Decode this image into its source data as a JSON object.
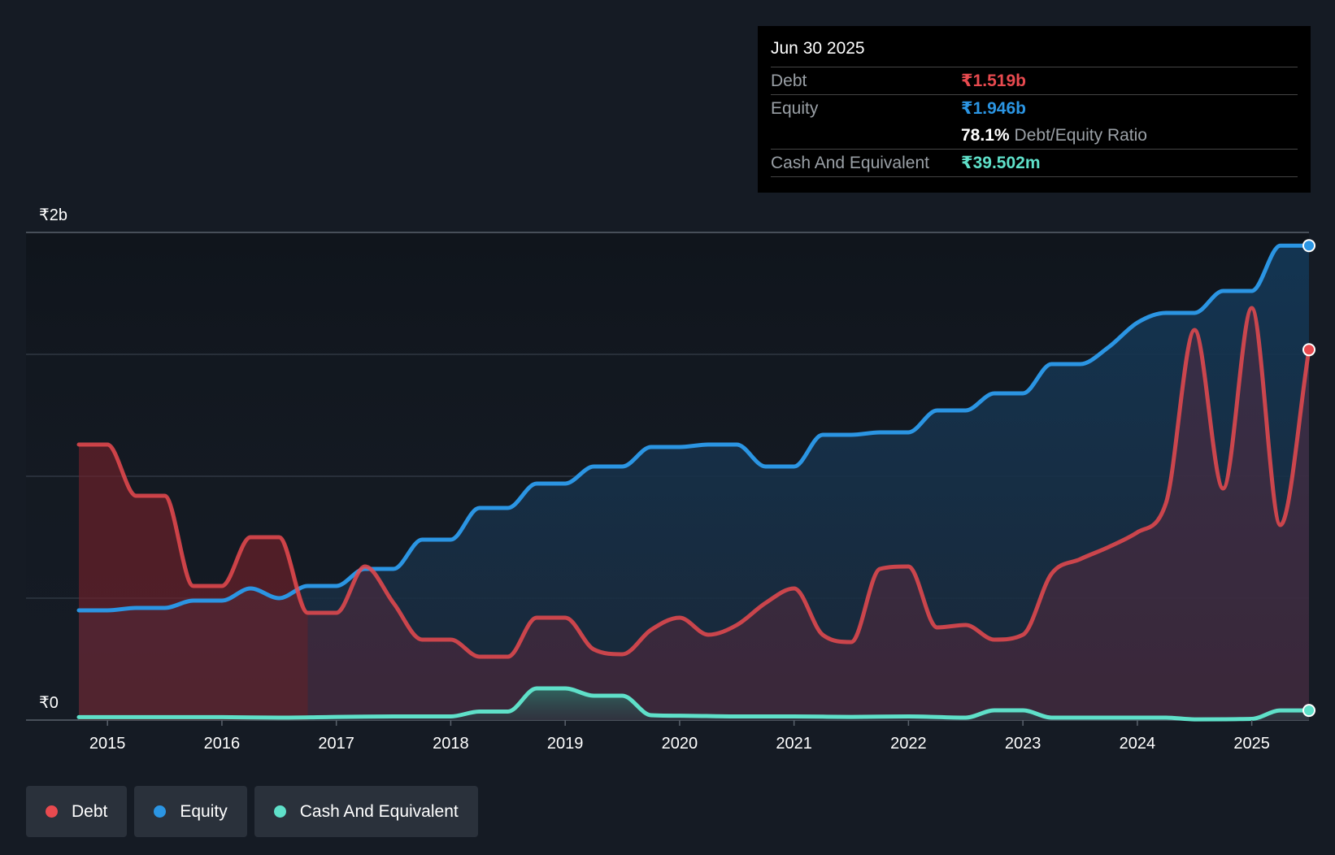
{
  "tooltip": {
    "date": "Jun 30 2025",
    "debt_label": "Debt",
    "debt_value": "₹1.519b",
    "equity_label": "Equity",
    "equity_value": "₹1.946b",
    "ratio_value": "78.1%",
    "ratio_label": "Debt/Equity Ratio",
    "cash_label": "Cash And Equivalent",
    "cash_value": "₹39.502m"
  },
  "legend": {
    "debt": "Debt",
    "equity": "Equity",
    "cash": "Cash And Equivalent"
  },
  "colors": {
    "debt": "#e84a4f",
    "equity": "#2b95e3",
    "cash": "#5fe0c9",
    "background": "#151b24"
  },
  "chart_data": {
    "type": "area",
    "title": "",
    "xlabel": "",
    "ylabel": "",
    "ylim": [
      0,
      2.0
    ],
    "y_unit": "₹ billions",
    "y_tick_labels": [
      {
        "value": 2.0,
        "label": "₹2b"
      },
      {
        "value": 0,
        "label": "₹0"
      }
    ],
    "gridlines": [
      0,
      0.5,
      1.0,
      1.5,
      2.0
    ],
    "xlim": [
      2014.75,
      2025.5
    ],
    "x_ticks": [
      2015,
      2016,
      2017,
      2018,
      2019,
      2020,
      2021,
      2022,
      2023,
      2024,
      2025
    ],
    "x_tick_labels": [
      "2015",
      "2016",
      "2017",
      "2018",
      "2019",
      "2020",
      "2021",
      "2022",
      "2023",
      "2024",
      "2025"
    ],
    "series": [
      {
        "name": "Debt",
        "key": "debt",
        "x": [
          2014.75,
          2015.0,
          2015.25,
          2015.5,
          2015.75,
          2016.0,
          2016.25,
          2016.5,
          2016.75,
          2017.0,
          2017.25,
          2017.5,
          2017.75,
          2018.0,
          2018.25,
          2018.5,
          2018.75,
          2019.0,
          2019.25,
          2019.5,
          2019.75,
          2020.0,
          2020.25,
          2020.5,
          2020.75,
          2021.0,
          2021.25,
          2021.5,
          2021.75,
          2022.0,
          2022.25,
          2022.5,
          2022.75,
          2023.0,
          2023.25,
          2023.5,
          2023.75,
          2024.0,
          2024.25,
          2024.5,
          2024.75,
          2025.0,
          2025.25,
          2025.5
        ],
        "values": [
          1.13,
          1.13,
          0.92,
          0.92,
          0.55,
          0.55,
          0.75,
          0.75,
          0.44,
          0.44,
          0.63,
          0.48,
          0.33,
          0.33,
          0.26,
          0.26,
          0.42,
          0.42,
          0.29,
          0.27,
          0.37,
          0.42,
          0.35,
          0.39,
          0.48,
          0.54,
          0.35,
          0.32,
          0.62,
          0.63,
          0.38,
          0.39,
          0.33,
          0.35,
          0.6,
          0.66,
          0.71,
          0.77,
          0.89,
          1.6,
          0.95,
          1.69,
          0.8,
          1.519
        ]
      },
      {
        "name": "Equity",
        "key": "equity",
        "x": [
          2014.75,
          2015.0,
          2015.25,
          2015.5,
          2015.75,
          2016.0,
          2016.25,
          2016.5,
          2016.75,
          2017.0,
          2017.25,
          2017.5,
          2017.75,
          2018.0,
          2018.25,
          2018.5,
          2018.75,
          2019.0,
          2019.25,
          2019.5,
          2019.75,
          2020.0,
          2020.25,
          2020.5,
          2020.75,
          2021.0,
          2021.25,
          2021.5,
          2021.75,
          2022.0,
          2022.25,
          2022.5,
          2022.75,
          2023.0,
          2023.25,
          2023.5,
          2023.75,
          2024.0,
          2024.25,
          2024.5,
          2024.75,
          2025.0,
          2025.25,
          2025.5
        ],
        "values": [
          0.45,
          0.45,
          0.46,
          0.46,
          0.49,
          0.49,
          0.54,
          0.5,
          0.55,
          0.55,
          0.62,
          0.62,
          0.74,
          0.74,
          0.87,
          0.87,
          0.97,
          0.97,
          1.04,
          1.04,
          1.12,
          1.12,
          1.13,
          1.13,
          1.04,
          1.04,
          1.17,
          1.17,
          1.18,
          1.18,
          1.27,
          1.27,
          1.34,
          1.34,
          1.46,
          1.46,
          1.53,
          1.63,
          1.67,
          1.67,
          1.76,
          1.76,
          1.946,
          1.946
        ]
      },
      {
        "name": "Cash And Equivalent",
        "key": "cash",
        "x": [
          2014.75,
          2015.0,
          2015.5,
          2016.0,
          2016.5,
          2017.0,
          2017.5,
          2018.0,
          2018.25,
          2018.5,
          2018.75,
          2019.0,
          2019.25,
          2019.5,
          2019.75,
          2020.0,
          2020.5,
          2021.0,
          2021.5,
          2022.0,
          2022.5,
          2022.75,
          2023.0,
          2023.25,
          2023.5,
          2024.0,
          2024.25,
          2024.5,
          2025.0,
          2025.25,
          2025.5
        ],
        "values": [
          0.012,
          0.012,
          0.012,
          0.012,
          0.01,
          0.013,
          0.015,
          0.015,
          0.035,
          0.035,
          0.13,
          0.13,
          0.1,
          0.1,
          0.02,
          0.018,
          0.015,
          0.015,
          0.013,
          0.015,
          0.01,
          0.04,
          0.04,
          0.01,
          0.01,
          0.01,
          0.01,
          0.003,
          0.005,
          0.0395,
          0.0395
        ]
      }
    ]
  }
}
